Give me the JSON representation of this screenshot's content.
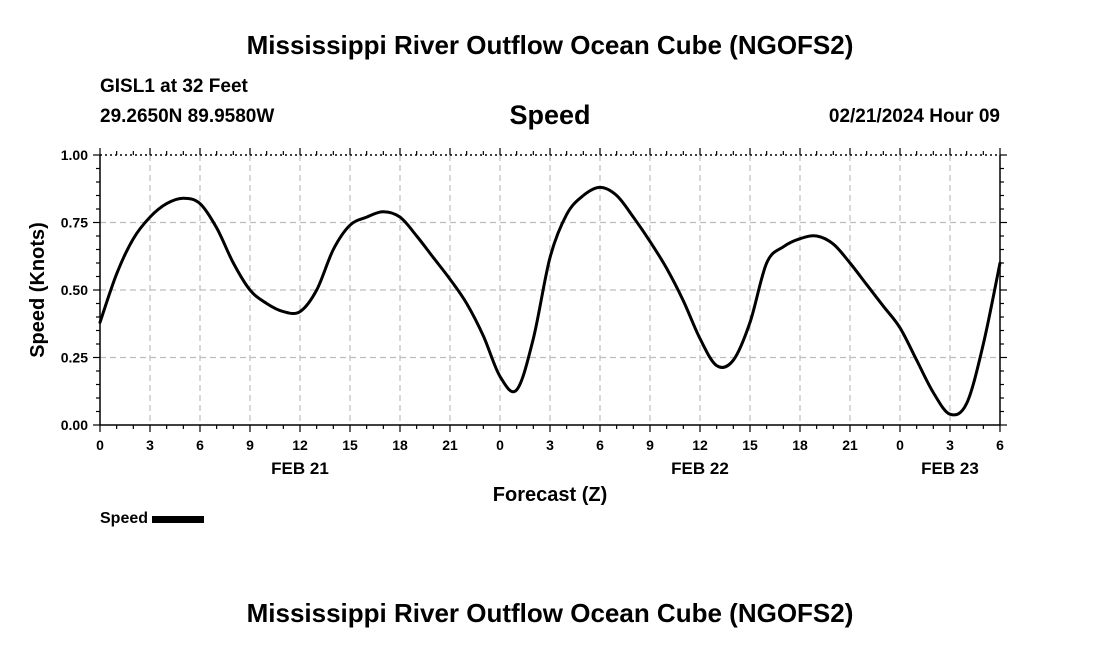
{
  "page": {
    "title_top": "Mississippi River Outflow Ocean Cube (NGOFS2)",
    "title_bottom": "Mississippi River Outflow Ocean Cube (NGOFS2)",
    "station": "GISL1 at 32 Feet",
    "coords": "29.2650N  89.9580W",
    "timestamp": "02/21/2024 Hour 09"
  },
  "chart_data": {
    "type": "line",
    "title": "Speed",
    "xlabel": "Forecast (Z)",
    "ylabel": "Speed (Knots)",
    "ylim": [
      0,
      1
    ],
    "y_ticks": [
      "0.00",
      "0.25",
      "0.50",
      "0.75",
      "1.00"
    ],
    "x_unit": "hours from 2024-02-21 00Z",
    "xlim": [
      0,
      54
    ],
    "x_ticks": [
      "0",
      "3",
      "6",
      "9",
      "12",
      "15",
      "18",
      "21",
      "0",
      "3",
      "6",
      "9",
      "12",
      "15",
      "18",
      "21",
      "0",
      "3",
      "6"
    ],
    "date_labels": [
      {
        "label": "FEB 21",
        "hour": 12
      },
      {
        "label": "FEB 22",
        "hour": 36
      },
      {
        "label": "FEB 23",
        "hour": 51
      }
    ],
    "grid": true,
    "legend": "bottom-left",
    "series": [
      {
        "name": "Speed",
        "color": "#000000",
        "x": [
          0,
          1,
          2,
          3,
          4,
          5,
          6,
          7,
          8,
          9,
          10,
          11,
          12,
          13,
          14,
          15,
          16,
          17,
          18,
          19,
          20,
          21,
          22,
          23,
          24,
          25,
          26,
          27,
          28,
          29,
          30,
          31,
          32,
          33,
          34,
          35,
          36,
          37,
          38,
          39,
          40,
          41,
          42,
          43,
          44,
          45,
          46,
          47,
          48,
          49,
          50,
          51,
          52,
          53,
          54
        ],
        "values": [
          0.38,
          0.56,
          0.69,
          0.77,
          0.82,
          0.84,
          0.82,
          0.73,
          0.6,
          0.5,
          0.45,
          0.42,
          0.42,
          0.5,
          0.65,
          0.74,
          0.77,
          0.79,
          0.77,
          0.7,
          0.62,
          0.54,
          0.45,
          0.33,
          0.18,
          0.13,
          0.32,
          0.62,
          0.78,
          0.85,
          0.88,
          0.85,
          0.77,
          0.68,
          0.58,
          0.46,
          0.32,
          0.22,
          0.24,
          0.38,
          0.6,
          0.66,
          0.69,
          0.7,
          0.67,
          0.6,
          0.52,
          0.44,
          0.36,
          0.24,
          0.12,
          0.04,
          0.08,
          0.3,
          0.6
        ]
      }
    ]
  }
}
